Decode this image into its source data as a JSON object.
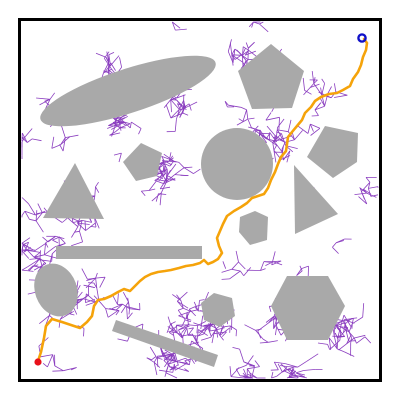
{
  "scene": {
    "description_free": true,
    "colors": {
      "background": "#ffffff",
      "border": "#000000",
      "obstacle": "#a9a9a9",
      "tree": "#8a3dbf",
      "path": "#f5a30a",
      "start": "#e8101a",
      "goal": "#1010c8"
    },
    "obstacle_count": 13,
    "markers": {
      "start_icon": "start-marker-icon",
      "goal_icon": "goal-marker-icon"
    }
  }
}
